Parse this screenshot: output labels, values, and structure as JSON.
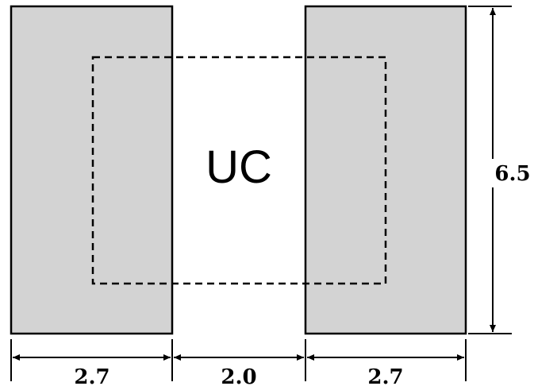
{
  "diagram": {
    "center_label": "UC",
    "height_label": "6.5",
    "width_labels": {
      "left": "2.7",
      "gap": "2.0",
      "right": "2.7"
    },
    "colors": {
      "block_fill": "#d3d3d3",
      "stroke": "#000000",
      "background": "#ffffff"
    }
  }
}
